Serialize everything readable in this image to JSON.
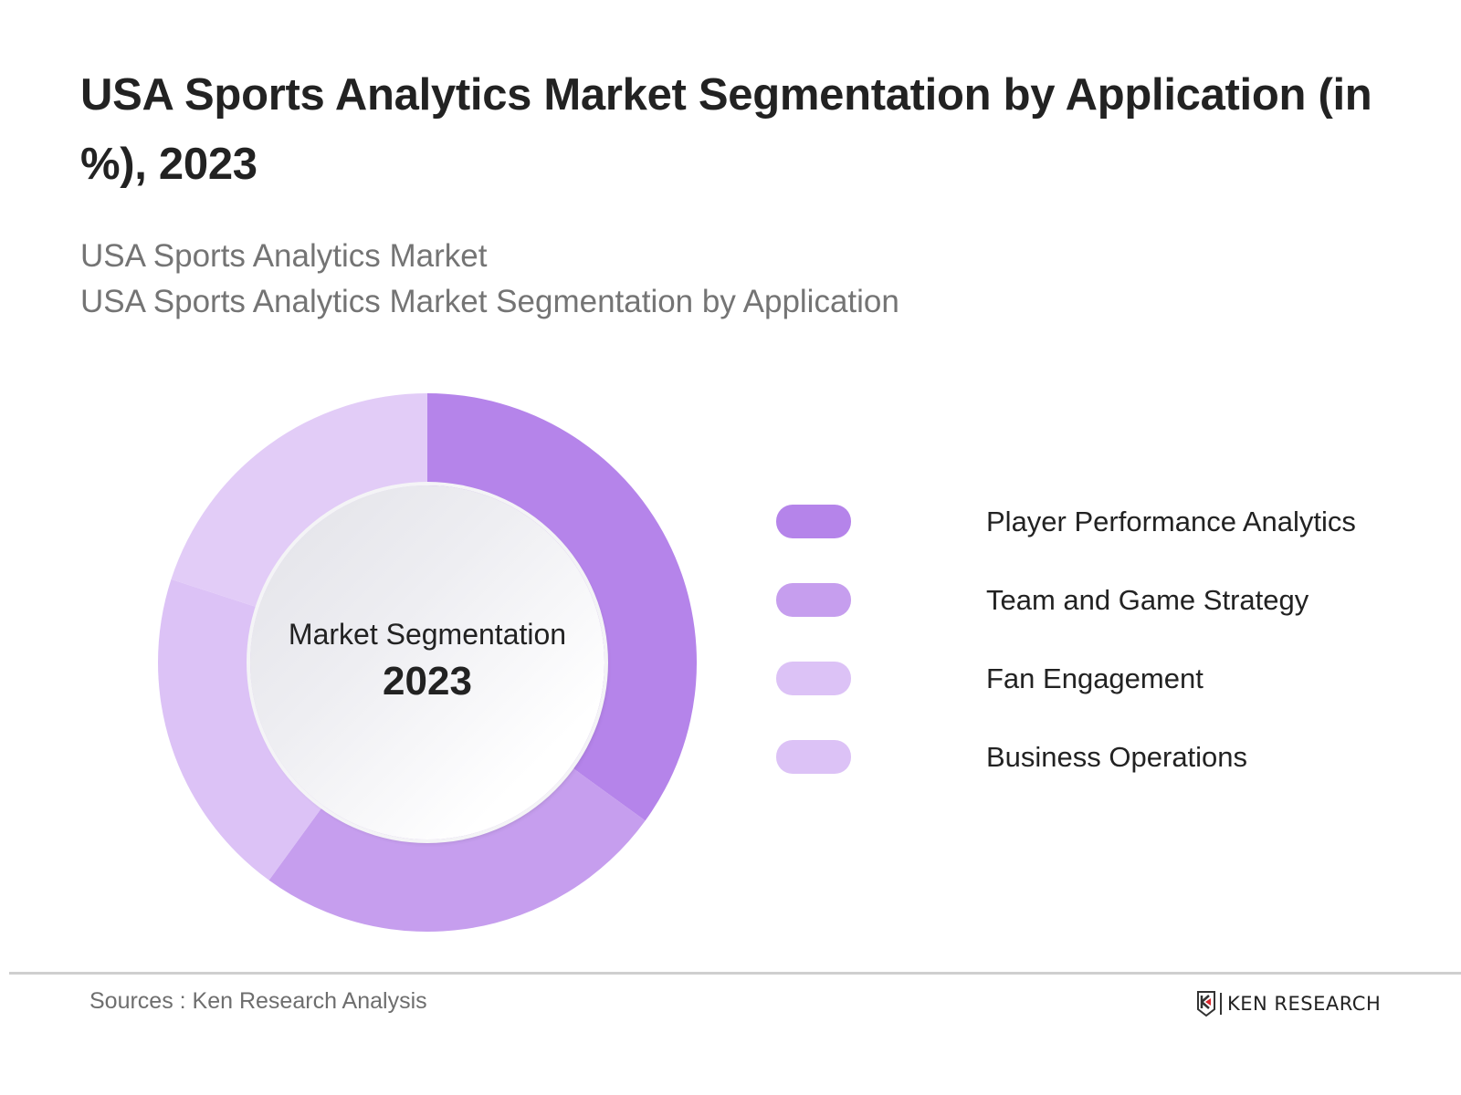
{
  "title": "USA Sports Analytics Market Segmentation by Application (in %), 2023",
  "subtitle": {
    "line1": "USA Sports Analytics Market",
    "line2": "USA Sports Analytics Market Segmentation by Application"
  },
  "center": {
    "label": "Market Segmentation",
    "year": "2023"
  },
  "legend": [
    {
      "label": "Player Performance Analytics",
      "color": "#B584EA"
    },
    {
      "label": "Team and Game Strategy",
      "color": "#C69EEE"
    },
    {
      "label": "Fan Engagement",
      "color": "#DCC2F6"
    },
    {
      "label": "Business Operations",
      "color": "#DCC2F6"
    }
  ],
  "footer": {
    "source": "Sources : Ken Research Analysis",
    "logo_text": "KEN RESEARCH"
  },
  "chart_data": {
    "type": "pie",
    "variant": "donut",
    "title": "USA Sports Analytics Market Segmentation by Application (in %), 2023",
    "center_text": [
      "Market Segmentation",
      "2023"
    ],
    "categories": [
      "Player Performance Analytics",
      "Team and Game Strategy",
      "Fan Engagement",
      "Business Operations"
    ],
    "values": [
      35,
      25,
      20,
      20
    ],
    "unit": "%",
    "colors": [
      "#B584EA",
      "#C69EEE",
      "#DCC2F6",
      "#E2CCF7"
    ],
    "start_angle": "12 o'clock, clockwise",
    "legend_position": "right",
    "data_labels": false
  }
}
